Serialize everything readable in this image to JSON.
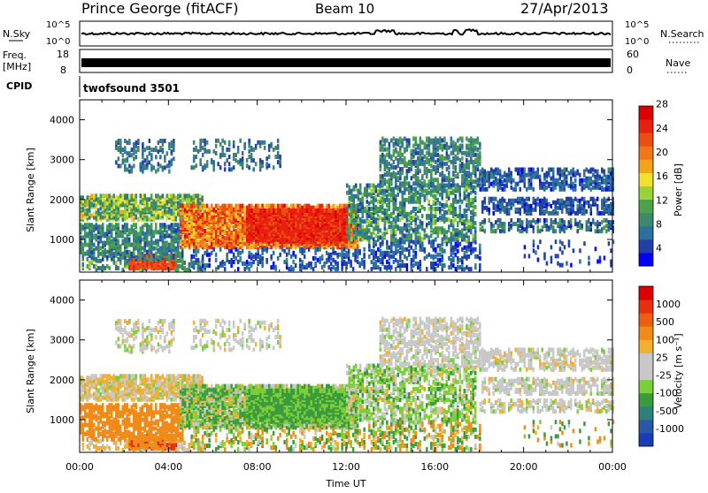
{
  "header": {
    "station": "Prince George (fitACF)",
    "beam": "Beam 10",
    "date": "27/Apr/2013"
  },
  "noise_panel": {
    "left_label": "N.Sky",
    "right_label": "N.Search",
    "ticks": [
      "10^5",
      "10^0"
    ]
  },
  "freq_panel": {
    "left_label_line1": "Freq.",
    "left_label_line2": "[MHz]",
    "left_ticks": [
      "18",
      "8"
    ],
    "right_ticks": [
      "60",
      "0"
    ],
    "right_label": "Nave"
  },
  "cpid": {
    "label": "CPID",
    "value": "twofsound 3501"
  },
  "chart_data": [
    {
      "type": "heatmap",
      "name": "power",
      "ylabel": "Slant Range [km]",
      "y_ticks": [
        "1000",
        "2000",
        "3000",
        "4000"
      ],
      "x_range_hours": [
        0,
        24
      ],
      "y_range_km": [
        180,
        4500
      ],
      "colorbar": {
        "label": "Power [dB]",
        "ticks": [
          "4",
          "8",
          "12",
          "16",
          "20",
          "24",
          "28"
        ],
        "colors": [
          "#0000ff",
          "#2040a8",
          "#2e6fa0",
          "#3c8a6a",
          "#4aa34a",
          "#9ad23a",
          "#f0e030",
          "#f5a31a",
          "#f07818",
          "#ea4e10",
          "#e82010",
          "#dd0000"
        ]
      }
    },
    {
      "type": "heatmap",
      "name": "velocity",
      "ylabel": "Slant Range [km]",
      "xlabel": "Time UT",
      "y_ticks": [
        "1000",
        "2000",
        "3000",
        "4000"
      ],
      "x_ticks": [
        "00:00",
        "04:00",
        "08:00",
        "12:00",
        "16:00",
        "20:00",
        "00:00"
      ],
      "x_range_hours": [
        0,
        24
      ],
      "y_range_km": [
        180,
        4500
      ],
      "colorbar": {
        "label": "Velocity [m s⁻¹]",
        "ticks": [
          "1000",
          "500",
          "100",
          "25",
          "-25",
          "-100",
          "-500",
          "-1000"
        ],
        "colors": [
          "#1a3cb8",
          "#2a58a8",
          "#2f7f7a",
          "#3a9a3c",
          "#7ccf3a",
          "#c8c8c8",
          "#c8c8c8",
          "#f2b030",
          "#f08a18",
          "#ea6010",
          "#e53010",
          "#dd0000"
        ]
      }
    }
  ]
}
